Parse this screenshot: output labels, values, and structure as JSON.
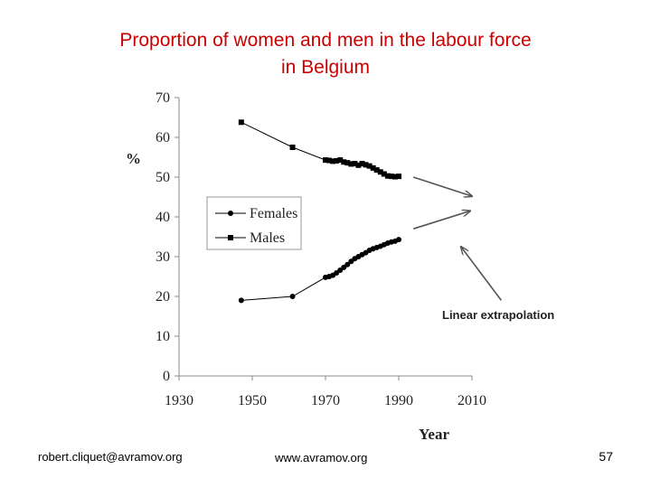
{
  "slide": {
    "title_line1": "Proportion of women and men in the labour force",
    "title_line2": "in Belgium"
  },
  "footer": {
    "email": "robert.cliquet@avramov.org",
    "website": "www.avramov.org",
    "page_number": "57"
  },
  "chart_data": {
    "type": "line",
    "ylabel": "%",
    "xlabel": "Year",
    "xlim": [
      1930,
      2010
    ],
    "ylim": [
      0,
      70
    ],
    "x_ticks": [
      1930,
      1950,
      1970,
      1990,
      2010
    ],
    "y_ticks": [
      0,
      10,
      20,
      30,
      40,
      50,
      60,
      70
    ],
    "grid": false,
    "legend": "center-left",
    "series": [
      {
        "name": "Females",
        "marker": "circle",
        "x": [
          1947,
          1961,
          1970,
          1971,
          1972,
          1973,
          1974,
          1975,
          1976,
          1977,
          1978,
          1979,
          1980,
          1981,
          1982,
          1983,
          1984,
          1985,
          1986,
          1987,
          1988,
          1989,
          1990
        ],
        "y": [
          19.0,
          20.0,
          24.8,
          25.0,
          25.3,
          25.9,
          26.6,
          27.3,
          28.0,
          28.8,
          29.5,
          30.0,
          30.5,
          31.0,
          31.6,
          32.0,
          32.3,
          32.6,
          33.0,
          33.4,
          33.7,
          33.9,
          34.3
        ]
      },
      {
        "name": "Males",
        "marker": "square",
        "x": [
          1947,
          1961,
          1970,
          1971,
          1972,
          1973,
          1974,
          1975,
          1976,
          1977,
          1978,
          1979,
          1980,
          1981,
          1982,
          1983,
          1984,
          1985,
          1986,
          1987,
          1988,
          1989,
          1990
        ],
        "y": [
          63.8,
          57.5,
          54.3,
          54.2,
          54.0,
          54.1,
          54.3,
          53.8,
          53.6,
          53.3,
          53.4,
          53.0,
          53.4,
          53.1,
          52.8,
          52.3,
          51.8,
          51.3,
          50.8,
          50.3,
          50.2,
          50.1,
          50.2
        ]
      }
    ],
    "annotation": {
      "text": "Linear extrapolation",
      "arrows": [
        {
          "from": [
            1994,
            50.0
          ],
          "to": [
            2010,
            45.2
          ]
        },
        {
          "from": [
            1994,
            37.0
          ],
          "to": [
            2009.5,
            41.5
          ]
        },
        {
          "from": [
            2018,
            19.0
          ],
          "to": [
            2007,
            32.5
          ]
        }
      ]
    }
  }
}
